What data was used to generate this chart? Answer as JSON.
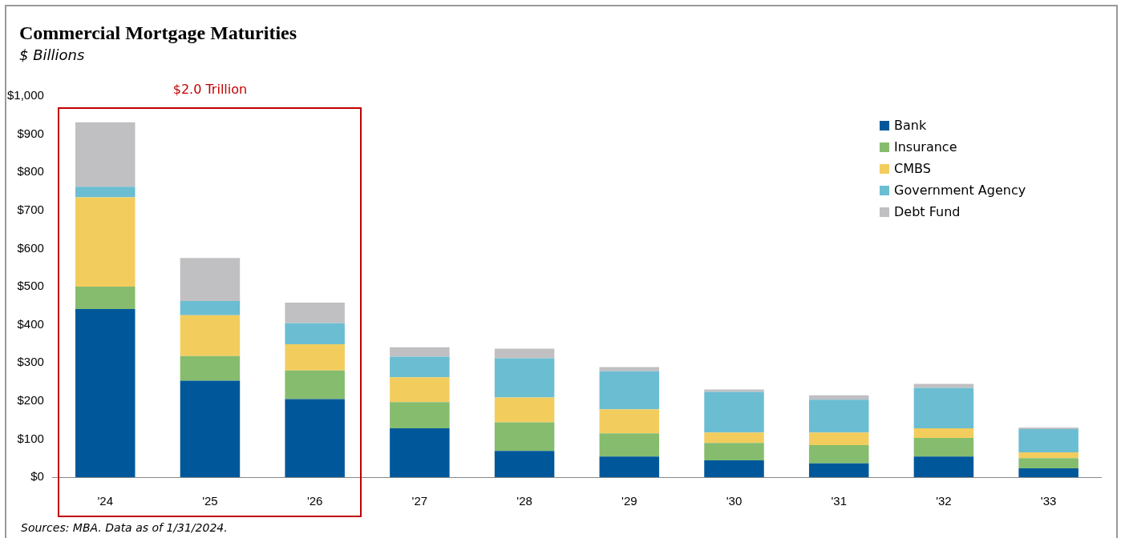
{
  "chart_data": {
    "type": "bar",
    "stacked": true,
    "title": "Commercial Mortgage Maturities",
    "subtitle": "$ Billions",
    "categories": [
      "'24",
      "'25",
      "'26",
      "'27",
      "'28",
      "'29",
      "'30",
      "'31",
      "'32",
      "'33"
    ],
    "series": [
      {
        "name": "Bank",
        "color": "#00589a",
        "values": [
          441,
          253,
          205,
          128,
          69,
          54,
          44,
          36,
          54,
          23
        ]
      },
      {
        "name": "Insurance",
        "color": "#86bc6e",
        "values": [
          59,
          65,
          75,
          69,
          75,
          61,
          46,
          48,
          49,
          27
        ]
      },
      {
        "name": "CMBS",
        "color": "#f2cd5e",
        "values": [
          234,
          107,
          69,
          65,
          65,
          63,
          27,
          33,
          25,
          15
        ]
      },
      {
        "name": "Government Agency",
        "color": "#6bbdd2",
        "values": [
          28,
          37,
          55,
          54,
          103,
          100,
          107,
          86,
          106,
          61
        ]
      },
      {
        "name": "Debt Fund",
        "color": "#c0c0c2",
        "values": [
          169,
          113,
          54,
          25,
          25,
          11,
          6,
          12,
          11,
          4
        ]
      }
    ],
    "ylim": [
      0,
      1000
    ],
    "yticks": [
      {
        "value": 0,
        "label": "$0"
      },
      {
        "value": 100,
        "label": "$100"
      },
      {
        "value": 200,
        "label": "$200"
      },
      {
        "value": 300,
        "label": "$300"
      },
      {
        "value": 400,
        "label": "$400"
      },
      {
        "value": 500,
        "label": "$500"
      },
      {
        "value": 600,
        "label": "$600"
      },
      {
        "value": 700,
        "label": "$700"
      },
      {
        "value": 800,
        "label": "$800"
      },
      {
        "value": 900,
        "label": "$900"
      },
      {
        "value": 1000,
        "label": "$1,000"
      }
    ],
    "grid": false,
    "legend": "top right",
    "annotations": [
      "$2.0 Trillion",
      "Sources: MBA. Data as of 1/31/2024."
    ]
  }
}
